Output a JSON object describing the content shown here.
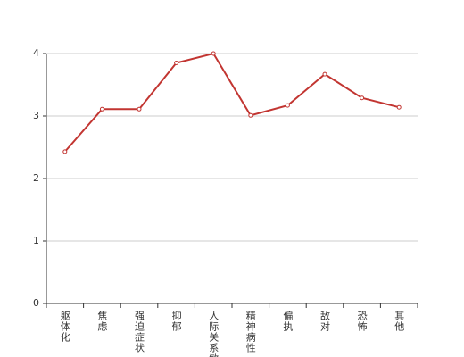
{
  "chart_data": {
    "type": "line",
    "categories": [
      "躯体化",
      "焦虑",
      "强迫症状",
      "抑郁",
      "人际关系敏感",
      "精神病性",
      "偏执",
      "敌对",
      "恐怖",
      "其他"
    ],
    "values": [
      2.43,
      3.11,
      3.11,
      3.85,
      4.0,
      3.01,
      3.17,
      3.67,
      3.29,
      3.14
    ],
    "color": "#c23531",
    "ylim": [
      0,
      4
    ],
    "yticks": [
      0,
      1,
      2,
      3,
      4
    ],
    "grid": true
  }
}
